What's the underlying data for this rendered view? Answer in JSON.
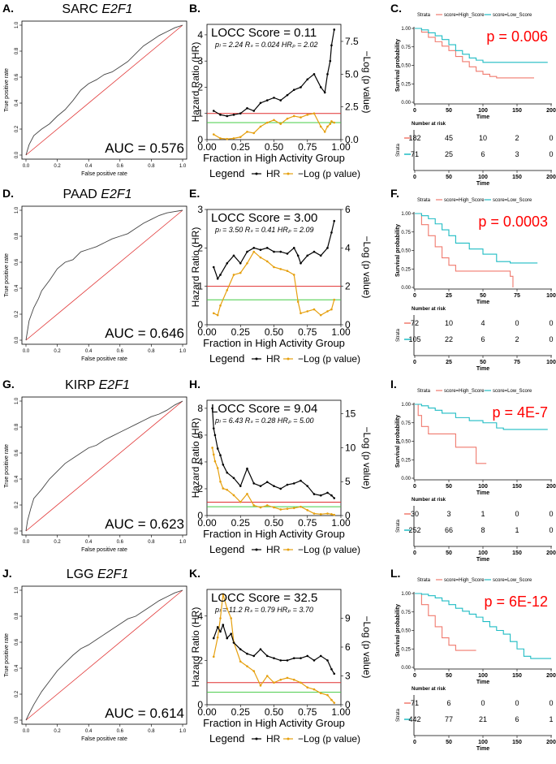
{
  "figure": {
    "x_fraction_label": "Fraction in High Activity Group",
    "y_hr_label": "Hazard Ratio (HR)",
    "y_logp_label": "−Log (p value)",
    "legend_title": "Legend",
    "legend_hr": "HR",
    "legend_logp": "−Log (p value)",
    "roc_xlabel": "False positive rate",
    "roc_ylabel": "True positive rate",
    "km_ylabel": "Survival probability",
    "km_xlabel": "Time",
    "strata_title": "Strata",
    "strata_high": "score=High_Score",
    "strata_low": "score=Low_Score",
    "risk_title": "Number at risk",
    "risk_ylabel": "Strata",
    "colors": {
      "hr": "#000000",
      "logp": "#e6a00f",
      "red_line": "#e03030",
      "green_line": "#44cc44",
      "high": "#f07a6e",
      "low": "#1fbcc4",
      "pval": "#ff0000"
    }
  },
  "chart_data": [
    {
      "type": "line",
      "name": "SARC ROC",
      "panel_label": "A.",
      "title": "SARC",
      "gene": "E2F1",
      "auc_text": "AUC = 0.576",
      "xlim": [
        0,
        1
      ],
      "ylim": [
        0,
        1
      ],
      "ticks": [
        "0.0",
        "0.2",
        "0.4",
        "0.6",
        "0.8",
        "1.0"
      ],
      "x": [
        0,
        0.02,
        0.05,
        0.1,
        0.15,
        0.2,
        0.25,
        0.3,
        0.35,
        0.4,
        0.45,
        0.5,
        0.55,
        0.6,
        0.65,
        0.7,
        0.75,
        0.8,
        0.85,
        0.9,
        0.95,
        1.0
      ],
      "y": [
        0,
        0.08,
        0.15,
        0.2,
        0.24,
        0.3,
        0.35,
        0.42,
        0.5,
        0.55,
        0.58,
        0.62,
        0.64,
        0.68,
        0.72,
        0.78,
        0.84,
        0.88,
        0.92,
        0.95,
        0.98,
        1.0
      ]
    },
    {
      "type": "line",
      "name": "SARC LOCC",
      "panel_label": "B.",
      "score_text": "LOCC Score = 0.11",
      "stats_text": "pₗ = 2.24  Rₛ = 0.024  HRₚ = 2.02",
      "xlim": [
        0,
        1
      ],
      "hr_lim": [
        0,
        4.4
      ],
      "logp_lim": [
        0,
        8.8
      ],
      "x_ticks": [
        "0.00",
        "0.25",
        "0.50",
        "0.75",
        "1.00"
      ],
      "hr_ticks": [
        "0",
        "1",
        "2",
        "3",
        "4"
      ],
      "logp_ticks": [
        "0.0",
        "2.5",
        "5.0",
        "7.5"
      ],
      "hr_ref": 1,
      "logp_ref": 1.3,
      "x": [
        0.05,
        0.1,
        0.15,
        0.2,
        0.25,
        0.3,
        0.35,
        0.4,
        0.45,
        0.5,
        0.55,
        0.6,
        0.65,
        0.7,
        0.75,
        0.8,
        0.85,
        0.88,
        0.9,
        0.92,
        0.93,
        0.95
      ],
      "hr": [
        1.1,
        0.95,
        0.9,
        0.95,
        1.0,
        1.2,
        1.1,
        1.4,
        1.5,
        1.6,
        1.5,
        1.7,
        1.9,
        2.0,
        2.3,
        2.5,
        2.0,
        1.8,
        2.5,
        3.0,
        3.6,
        4.2
      ],
      "logp": [
        0.4,
        0.1,
        0.05,
        0.1,
        0.2,
        0.6,
        0.5,
        1.0,
        1.3,
        1.5,
        1.2,
        1.6,
        1.8,
        1.7,
        1.9,
        2.0,
        1.0,
        0.6,
        1.0,
        1.2,
        1.4,
        1.3
      ]
    },
    {
      "type": "line",
      "name": "SARC KM",
      "panel_label": "C.",
      "p_text": "p = 0.006",
      "xlim": [
        0,
        200
      ],
      "ylim": [
        0,
        1
      ],
      "x_ticks": [
        "0",
        "50",
        "100",
        "150",
        "200"
      ],
      "y_ticks": [
        "0.00",
        "0.25",
        "0.50",
        "0.75",
        "1.00"
      ],
      "series": [
        {
          "name": "score=High_Score",
          "times": [
            0,
            10,
            20,
            30,
            40,
            50,
            60,
            70,
            80,
            90,
            100,
            110,
            120,
            175
          ],
          "surv": [
            1,
            0.95,
            0.88,
            0.82,
            0.76,
            0.7,
            0.62,
            0.55,
            0.48,
            0.42,
            0.38,
            0.35,
            0.33,
            0.33
          ]
        },
        {
          "name": "score=Low_Score",
          "times": [
            0,
            10,
            20,
            30,
            40,
            50,
            60,
            70,
            80,
            90,
            100,
            195
          ],
          "surv": [
            1,
            0.98,
            0.94,
            0.9,
            0.85,
            0.78,
            0.7,
            0.65,
            0.6,
            0.57,
            0.54,
            0.54
          ]
        }
      ],
      "risk_ticks": [
        "0",
        "50",
        "100",
        "150",
        "200"
      ],
      "risk": [
        [
          "182",
          "45",
          "10",
          "2",
          "0"
        ],
        [
          "71",
          "25",
          "6",
          "3",
          "0"
        ]
      ]
    },
    {
      "type": "line",
      "name": "PAAD ROC",
      "panel_label": "D.",
      "title": "PAAD",
      "gene": "E2F1",
      "auc_text": "AUC = 0.646",
      "xlim": [
        0,
        1
      ],
      "ylim": [
        0,
        1
      ],
      "ticks": [
        "0.0",
        "0.2",
        "0.4",
        "0.6",
        "0.8",
        "1.0"
      ],
      "x": [
        0,
        0.02,
        0.05,
        0.08,
        0.1,
        0.15,
        0.2,
        0.25,
        0.3,
        0.35,
        0.4,
        0.45,
        0.5,
        0.55,
        0.6,
        0.65,
        0.7,
        0.75,
        0.8,
        0.85,
        0.9,
        0.95,
        1.0
      ],
      "y": [
        0,
        0.15,
        0.25,
        0.32,
        0.38,
        0.46,
        0.55,
        0.6,
        0.62,
        0.68,
        0.7,
        0.72,
        0.75,
        0.78,
        0.8,
        0.82,
        0.86,
        0.9,
        0.93,
        0.96,
        0.98,
        0.99,
        1.0
      ]
    },
    {
      "type": "line",
      "name": "PAAD LOCC",
      "panel_label": "E.",
      "score_text": "LOCC Score = 3.00",
      "stats_text": "pₗ = 3.50  Rₛ = 0.41  HRₚ = 2.09",
      "xlim": [
        0,
        1
      ],
      "hr_lim": [
        0,
        3
      ],
      "logp_lim": [
        0,
        6
      ],
      "x_ticks": [
        "0.00",
        "0.25",
        "0.50",
        "0.75",
        "1.00"
      ],
      "hr_ticks": [
        "0",
        "1",
        "2",
        "3"
      ],
      "logp_ticks": [
        "0",
        "2",
        "4",
        "6"
      ],
      "hr_ref": 1,
      "logp_ref": 1.3,
      "x": [
        0.05,
        0.08,
        0.1,
        0.15,
        0.2,
        0.25,
        0.3,
        0.35,
        0.4,
        0.45,
        0.5,
        0.55,
        0.6,
        0.65,
        0.68,
        0.7,
        0.75,
        0.8,
        0.85,
        0.9,
        0.93,
        0.95
      ],
      "hr": [
        1.5,
        1.2,
        1.3,
        1.6,
        1.8,
        1.6,
        1.9,
        2.0,
        1.95,
        2.0,
        1.9,
        1.9,
        1.85,
        2.0,
        1.8,
        1.6,
        1.8,
        1.9,
        1.8,
        2.0,
        2.4,
        2.7
      ],
      "logp": [
        0.6,
        0.5,
        1.0,
        1.8,
        2.6,
        2.7,
        3.2,
        3.8,
        3.5,
        3.3,
        3.0,
        2.9,
        2.8,
        2.6,
        1.2,
        0.6,
        0.7,
        0.8,
        0.5,
        0.7,
        0.8,
        1.3
      ]
    },
    {
      "type": "line",
      "name": "PAAD KM",
      "panel_label": "F.",
      "p_text": "p = 0.0003",
      "xlim": [
        0,
        100
      ],
      "ylim": [
        0,
        1
      ],
      "x_ticks": [
        "0",
        "25",
        "50",
        "75",
        "100"
      ],
      "y_ticks": [
        "0.00",
        "0.25",
        "0.50",
        "0.75",
        "1.00"
      ],
      "series": [
        {
          "name": "score=High_Score",
          "times": [
            0,
            5,
            10,
            15,
            20,
            25,
            30,
            50,
            60,
            70,
            72
          ],
          "surv": [
            1,
            0.85,
            0.7,
            0.55,
            0.4,
            0.3,
            0.22,
            0.22,
            0.22,
            0.15,
            0
          ]
        },
        {
          "name": "score=Low_Score",
          "times": [
            0,
            5,
            10,
            15,
            20,
            25,
            30,
            40,
            50,
            60,
            70,
            80,
            90
          ],
          "surv": [
            1,
            0.97,
            0.93,
            0.86,
            0.78,
            0.7,
            0.6,
            0.52,
            0.45,
            0.35,
            0.33,
            0.33,
            0.33
          ]
        }
      ],
      "risk_ticks": [
        "0",
        "25",
        "50",
        "75",
        "100"
      ],
      "risk": [
        [
          "72",
          "10",
          "4",
          "0",
          "0"
        ],
        [
          "105",
          "22",
          "6",
          "2",
          "0"
        ]
      ]
    },
    {
      "type": "line",
      "name": "KIRP ROC",
      "panel_label": "G.",
      "title": "KIRP",
      "gene": "E2F1",
      "auc_text": "AUC = 0.623",
      "xlim": [
        0,
        1
      ],
      "ylim": [
        0,
        1
      ],
      "ticks": [
        "0.0",
        "0.2",
        "0.4",
        "0.6",
        "0.8",
        "1.0"
      ],
      "x": [
        0,
        0.01,
        0.03,
        0.05,
        0.1,
        0.15,
        0.2,
        0.25,
        0.3,
        0.35,
        0.4,
        0.45,
        0.5,
        0.55,
        0.6,
        0.65,
        0.7,
        0.75,
        0.8,
        0.85,
        0.9,
        0.95,
        1.0
      ],
      "y": [
        0,
        0.08,
        0.17,
        0.25,
        0.32,
        0.4,
        0.46,
        0.52,
        0.56,
        0.6,
        0.64,
        0.66,
        0.7,
        0.73,
        0.76,
        0.79,
        0.82,
        0.85,
        0.88,
        0.9,
        0.93,
        0.97,
        1.0
      ]
    },
    {
      "type": "line",
      "name": "KIRP LOCC",
      "panel_label": "H.",
      "score_text": "LOCC Score = 9.04",
      "stats_text": "pₗ = 6.43  Rₛ = 0.28  HRₚ = 5.00",
      "xlim": [
        0,
        1
      ],
      "hr_lim": [
        0,
        8.6
      ],
      "logp_lim": [
        0,
        17
      ],
      "x_ticks": [
        "0.00",
        "0.25",
        "0.50",
        "0.75",
        "1.00"
      ],
      "hr_ticks": [
        "0",
        "2",
        "4",
        "6",
        "8"
      ],
      "logp_ticks": [
        "0",
        "5",
        "10",
        "15"
      ],
      "hr_ref": 1,
      "logp_ref": 1.3,
      "x": [
        0.04,
        0.05,
        0.06,
        0.08,
        0.1,
        0.12,
        0.15,
        0.2,
        0.25,
        0.3,
        0.35,
        0.4,
        0.45,
        0.5,
        0.55,
        0.6,
        0.65,
        0.7,
        0.75,
        0.8,
        0.85,
        0.9,
        0.93,
        0.95
      ],
      "hr": [
        8.0,
        6.5,
        6.0,
        5.0,
        4.5,
        3.8,
        3.2,
        2.8,
        2.2,
        3.5,
        2.4,
        2.2,
        2.5,
        2.2,
        2.0,
        2.3,
        2.4,
        2.6,
        2.2,
        1.6,
        1.5,
        1.7,
        1.5,
        1.3
      ],
      "logp": [
        10,
        9,
        8,
        7,
        5,
        4,
        3.8,
        3.0,
        2.0,
        3.2,
        1.5,
        1.2,
        1.5,
        1.2,
        0.9,
        1.0,
        1.1,
        1.3,
        0.8,
        0.3,
        0.2,
        0.3,
        0.2,
        0.1
      ]
    },
    {
      "type": "line",
      "name": "KIRP KM",
      "panel_label": "I.",
      "p_text": "p = 4E-7",
      "xlim": [
        0,
        200
      ],
      "ylim": [
        0,
        1
      ],
      "x_ticks": [
        "0",
        "50",
        "100",
        "150",
        "200"
      ],
      "y_ticks": [
        "0.00",
        "0.25",
        "0.50",
        "0.75",
        "1.00"
      ],
      "series": [
        {
          "name": "score=High_Score",
          "times": [
            0,
            5,
            10,
            20,
            60,
            80,
            90,
            105
          ],
          "surv": [
            1,
            0.85,
            0.7,
            0.6,
            0.42,
            0.42,
            0.2,
            0.2
          ]
        },
        {
          "name": "score=Low_Score",
          "times": [
            0,
            10,
            20,
            30,
            40,
            60,
            80,
            100,
            120,
            130,
            195
          ],
          "surv": [
            1,
            0.98,
            0.95,
            0.92,
            0.88,
            0.82,
            0.78,
            0.75,
            0.68,
            0.66,
            0.66
          ]
        }
      ],
      "risk_ticks": [
        "0",
        "50",
        "100",
        "150",
        "200"
      ],
      "risk": [
        [
          "30",
          "3",
          "1",
          "0",
          "0"
        ],
        [
          "252",
          "66",
          "8",
          "1",
          "0"
        ]
      ]
    },
    {
      "type": "line",
      "name": "LGG ROC",
      "panel_label": "J.",
      "title": "LGG",
      "gene": "E2F1",
      "auc_text": "AUC = 0.614",
      "xlim": [
        0,
        1
      ],
      "ylim": [
        0,
        1
      ],
      "ticks": [
        "0.0",
        "0.2",
        "0.4",
        "0.6",
        "0.8",
        "1.0"
      ],
      "x": [
        0,
        0.02,
        0.05,
        0.1,
        0.15,
        0.2,
        0.25,
        0.3,
        0.35,
        0.4,
        0.45,
        0.5,
        0.55,
        0.6,
        0.65,
        0.7,
        0.75,
        0.8,
        0.85,
        0.9,
        0.95,
        1.0
      ],
      "y": [
        0,
        0.05,
        0.12,
        0.22,
        0.3,
        0.38,
        0.44,
        0.5,
        0.55,
        0.58,
        0.62,
        0.66,
        0.7,
        0.74,
        0.78,
        0.8,
        0.84,
        0.88,
        0.92,
        0.95,
        0.98,
        1.0
      ]
    },
    {
      "type": "line",
      "name": "LGG LOCC",
      "panel_label": "K.",
      "score_text": "LOCC Score = 32.5",
      "stats_text": "pₗ = 11.2  Rₛ = 0.79  HRₚ = 3.70",
      "xlim": [
        0,
        1
      ],
      "hr_lim": [
        0,
        5.2
      ],
      "logp_lim": [
        0,
        12
      ],
      "x_ticks": [
        "0.00",
        "0.25",
        "0.50",
        "0.75",
        "1.00"
      ],
      "hr_ticks": [
        "0",
        "2",
        "4"
      ],
      "logp_ticks": [
        "0",
        "3",
        "6",
        "9"
      ],
      "hr_ref": 1,
      "logp_ref": 1.3,
      "x": [
        0.05,
        0.08,
        0.1,
        0.12,
        0.15,
        0.18,
        0.2,
        0.25,
        0.3,
        0.35,
        0.4,
        0.45,
        0.5,
        0.55,
        0.6,
        0.65,
        0.7,
        0.75,
        0.8,
        0.85,
        0.9,
        0.93,
        0.95
      ],
      "hr": [
        3.0,
        3.5,
        3.3,
        3.6,
        3.0,
        3.2,
        2.8,
        2.5,
        2.3,
        2.2,
        2.5,
        2.2,
        2.1,
        2.0,
        2.0,
        2.1,
        2.1,
        2.2,
        2.0,
        2.2,
        2.0,
        1.6,
        1.4
      ],
      "logp": [
        5.0,
        7.0,
        9.0,
        11.5,
        10.0,
        9.0,
        6.5,
        4.5,
        4.0,
        3.5,
        2.0,
        3.0,
        2.3,
        2.6,
        2.8,
        2.6,
        2.3,
        1.8,
        1.6,
        1.2,
        1.0,
        0.5,
        0.2
      ]
    },
    {
      "type": "line",
      "name": "LGG KM",
      "panel_label": "L.",
      "p_text": "p = 6E-12",
      "xlim": [
        0,
        200
      ],
      "ylim": [
        0,
        1
      ],
      "x_ticks": [
        "0",
        "50",
        "100",
        "150",
        "200"
      ],
      "y_ticks": [
        "0.00",
        "0.25",
        "0.50",
        "0.75",
        "1.00"
      ],
      "series": [
        {
          "name": "score=High_Score",
          "times": [
            0,
            10,
            20,
            30,
            40,
            50,
            60,
            90
          ],
          "surv": [
            1,
            0.85,
            0.7,
            0.55,
            0.4,
            0.3,
            0.23,
            0.23
          ]
        },
        {
          "name": "score=Low_Score",
          "times": [
            0,
            10,
            20,
            30,
            40,
            50,
            60,
            70,
            80,
            90,
            100,
            110,
            120,
            130,
            140,
            150,
            160,
            170,
            200
          ],
          "surv": [
            1,
            0.99,
            0.97,
            0.94,
            0.9,
            0.85,
            0.8,
            0.76,
            0.72,
            0.68,
            0.62,
            0.55,
            0.5,
            0.45,
            0.35,
            0.25,
            0.15,
            0.12,
            0.12
          ]
        }
      ],
      "risk_ticks": [
        "0",
        "50",
        "100",
        "150",
        "200"
      ],
      "risk": [
        [
          "71",
          "6",
          "0",
          "0",
          "0"
        ],
        [
          "442",
          "77",
          "21",
          "6",
          "1"
        ]
      ]
    }
  ]
}
